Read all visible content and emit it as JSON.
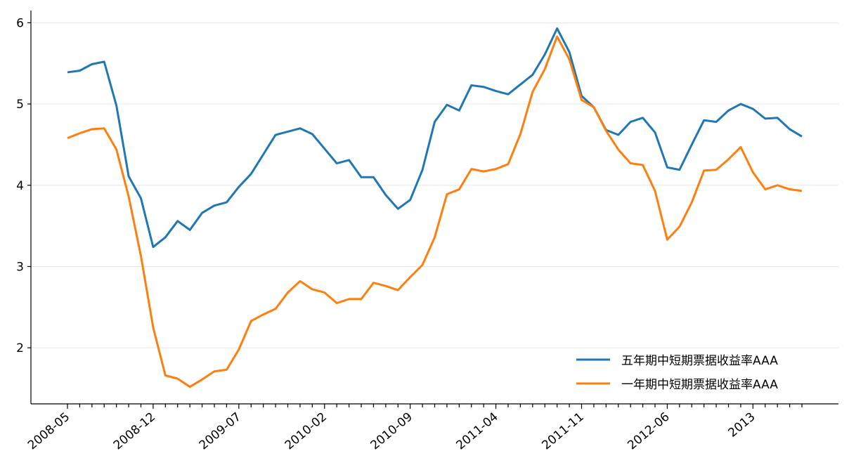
{
  "chart_data": {
    "type": "line",
    "categories": [
      "2008-05",
      null,
      null,
      null,
      null,
      null,
      null,
      "2008-12",
      null,
      null,
      null,
      null,
      null,
      null,
      "2009-07",
      null,
      null,
      null,
      null,
      null,
      null,
      "2010-02",
      null,
      null,
      null,
      null,
      null,
      null,
      "2010-09",
      null,
      null,
      null,
      null,
      null,
      null,
      "2011-04",
      null,
      null,
      null,
      null,
      null,
      null,
      "2011-11",
      null,
      null,
      null,
      null,
      null,
      null,
      "2012-06",
      null,
      null,
      null,
      null,
      null,
      null,
      "2013",
      null,
      null,
      null,
      null
    ],
    "series": [
      {
        "name": "五年期中短期票据收益率AAA",
        "color": "#1f77b4",
        "values": [
          5.39,
          5.41,
          5.49,
          5.52,
          4.98,
          4.11,
          3.84,
          3.24,
          3.36,
          3.56,
          3.45,
          3.66,
          3.75,
          3.79,
          3.98,
          4.14,
          4.38,
          4.62,
          4.66,
          4.7,
          4.63,
          4.45,
          4.27,
          4.31,
          4.1,
          4.1,
          3.88,
          3.71,
          3.82,
          4.19,
          4.78,
          4.99,
          4.92,
          5.23,
          5.21,
          5.16,
          5.12,
          5.24,
          5.36,
          5.61,
          5.93,
          5.64,
          5.1,
          4.96,
          4.68,
          4.62,
          4.78,
          4.83,
          4.65,
          4.22,
          4.19,
          4.5,
          4.8,
          4.78,
          4.92,
          5.0,
          4.94,
          4.82,
          4.83,
          4.69,
          4.6
        ]
      },
      {
        "name": "一年期中短期票据收益率AAA",
        "color": "#ff7f0e",
        "values": [
          4.58,
          4.64,
          4.69,
          4.7,
          4.44,
          3.86,
          3.13,
          2.25,
          1.66,
          1.62,
          1.52,
          1.61,
          1.71,
          1.73,
          1.98,
          2.33,
          2.41,
          2.48,
          2.68,
          2.82,
          2.72,
          2.68,
          2.55,
          2.6,
          2.6,
          2.8,
          2.76,
          2.71,
          2.87,
          3.02,
          3.36,
          3.89,
          3.95,
          4.2,
          4.17,
          4.2,
          4.26,
          4.63,
          5.15,
          5.43,
          5.83,
          5.55,
          5.05,
          4.96,
          4.67,
          4.44,
          4.27,
          4.25,
          3.93,
          3.33,
          3.49,
          3.79,
          4.18,
          4.19,
          4.32,
          4.47,
          4.16,
          3.95,
          4.0,
          3.95,
          3.93
        ]
      }
    ],
    "ylim": [
      1.31,
      6.15
    ],
    "yticks": [
      2,
      3,
      4,
      5,
      6
    ],
    "grid": true,
    "legend": "lower right"
  }
}
